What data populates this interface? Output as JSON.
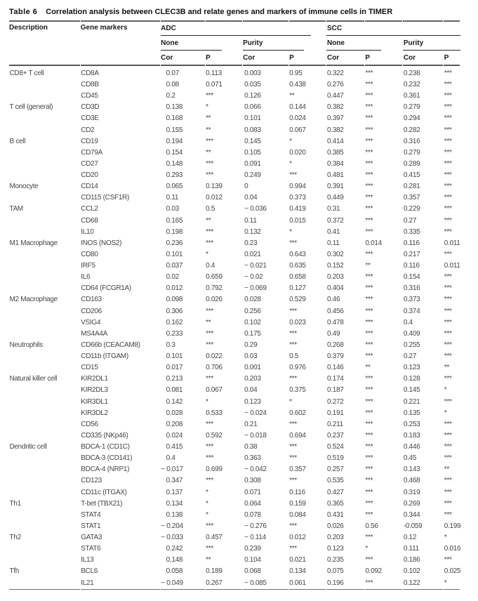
{
  "title": {
    "label": "Table 6",
    "text": "Correlation analysis between CLEC3B and relate genes and markers of immune cells in TIMER"
  },
  "table": {
    "header": {
      "description": "Description",
      "gene_markers": "Gene markers",
      "groups": [
        {
          "label": "ADC",
          "subgroups": [
            {
              "label": "None",
              "columns": [
                "Cor",
                "P"
              ]
            },
            {
              "label": "Purity",
              "columns": [
                "Cor",
                "P"
              ]
            }
          ]
        },
        {
          "label": "SCC",
          "subgroups": [
            {
              "label": "None",
              "columns": [
                "Cor",
                "P"
              ]
            },
            {
              "label": "Purity",
              "columns": [
                "Cor",
                "P"
              ]
            }
          ]
        }
      ]
    },
    "rows": [
      {
        "description": "CD8+ T cell",
        "gene": "CD8A",
        "values": [
          "0.07",
          "0.113",
          "0.003",
          "0.95",
          "0.322",
          "***",
          "0.238",
          "***"
        ]
      },
      {
        "description": "",
        "gene": "CD8B",
        "values": [
          "0.08",
          "0.071",
          "0.035",
          "0.438",
          "0.276",
          "***",
          "0.232",
          "***"
        ]
      },
      {
        "description": "",
        "gene": "CD45",
        "values": [
          "0.2",
          "***",
          "0.126",
          "**",
          "0.447",
          "***",
          "0.361",
          "***"
        ]
      },
      {
        "description": "T cell (general)",
        "gene": "CD3D",
        "values": [
          "0.138",
          "*",
          "0.066",
          "0.144",
          "0.382",
          "***",
          "0.279",
          "***"
        ]
      },
      {
        "description": "",
        "gene": "CD3E",
        "values": [
          "0.168",
          "**",
          "0.101",
          "0.024",
          "0.397",
          "***",
          "0.294",
          "***"
        ]
      },
      {
        "description": "",
        "gene": "CD2",
        "values": [
          "0.155",
          "**",
          "0.083",
          "0.067",
          "0.382",
          "***",
          "0.282",
          "***"
        ]
      },
      {
        "description": "B cell",
        "gene": "CD19",
        "values": [
          "0.194",
          "***",
          "0.145",
          "*",
          "0.414",
          "***",
          "0.316",
          "***"
        ]
      },
      {
        "description": "",
        "gene": "CD79A",
        "values": [
          "0.154",
          "**",
          "0.105",
          "0.020",
          "0.385",
          "***",
          "0.279",
          "***"
        ]
      },
      {
        "description": "",
        "gene": "CD27",
        "values": [
          "0.148",
          "***",
          "0.091",
          "*",
          "0.384",
          "***",
          "0.289",
          "***"
        ]
      },
      {
        "description": "",
        "gene": "CD20",
        "values": [
          "0.293",
          "***",
          "0.249",
          "***",
          "0.481",
          "***",
          "0.415",
          "***"
        ]
      },
      {
        "description": "Monocyte",
        "gene": "CD14",
        "values": [
          "0.065",
          "0.139",
          "0",
          "0.994",
          "0.391",
          "***",
          "0.281",
          "***"
        ]
      },
      {
        "description": "",
        "gene": "CD115 (CSF1R)",
        "values": [
          "0.11",
          "0.012",
          "0.04",
          "0.373",
          "0.449",
          "***",
          "0.357",
          "***"
        ]
      },
      {
        "description": "TAM",
        "gene": "CCL2",
        "values": [
          "0.03",
          "0.5",
          "− 0.036",
          "0.419",
          "0.31",
          "***",
          "0.229",
          "***"
        ]
      },
      {
        "description": "",
        "gene": "CD68",
        "values": [
          "0.165",
          "**",
          "0.11",
          "0.015",
          "0.372",
          "***",
          "0.27",
          "***"
        ]
      },
      {
        "description": "",
        "gene": "IL10",
        "values": [
          "0.198",
          "***",
          "0.132",
          "*",
          "0.41",
          "***",
          "0.335",
          "***"
        ]
      },
      {
        "description": "M1 Macrophage",
        "gene": "INOS (NOS2)",
        "values": [
          "0.236",
          "***",
          "0.23",
          "***",
          "0.11",
          "0.014",
          "0.116",
          "0.011"
        ]
      },
      {
        "description": "",
        "gene": "CD80",
        "values": [
          "0.101",
          "*",
          "0.021",
          "0.643",
          "0.302",
          "***",
          "0.217",
          "***"
        ]
      },
      {
        "description": "",
        "gene": "IRF5",
        "values": [
          "0.037",
          "0.4",
          "− 0.021",
          "0.635",
          "0.152",
          "**",
          "0.116",
          "0.011"
        ]
      },
      {
        "description": "",
        "gene": "IL6",
        "values": [
          "0.02",
          "0.659",
          "− 0.02",
          "0.658",
          "0.203",
          "***",
          "0.154",
          "***"
        ]
      },
      {
        "description": "",
        "gene": "CD64 (FCGR1A)",
        "values": [
          "0.012",
          "0.792",
          "− 0.069",
          "0.127",
          "0.404",
          "***",
          "0.316",
          "***"
        ]
      },
      {
        "description": "M2 Macrophage",
        "gene": "CD163",
        "values": [
          "0.098",
          "0.026",
          "0.028",
          "0.529",
          "0.46",
          "***",
          "0.373",
          "***"
        ]
      },
      {
        "description": "",
        "gene": "CD206",
        "values": [
          "0.306",
          "***",
          "0.256",
          "***",
          "0.456",
          "***",
          "0.374",
          "***"
        ]
      },
      {
        "description": "",
        "gene": "VSIG4",
        "values": [
          "0.162",
          "**",
          "0.102",
          "0.023",
          "0.478",
          "***",
          "0.4",
          "***"
        ]
      },
      {
        "description": "",
        "gene": "MS4A4A",
        "values": [
          "0.233",
          "***",
          "0.175",
          "***",
          "0.49",
          "***",
          "0.409",
          "***"
        ]
      },
      {
        "description": "Neutrophils",
        "gene": "CD66b (CEACAM8)",
        "values": [
          "0.3",
          "***",
          "0.29",
          "***",
          "0.268",
          "***",
          "0.255",
          "***"
        ]
      },
      {
        "description": "",
        "gene": "CD11b (ITGAM)",
        "values": [
          "0.101",
          "0.022",
          "0.03",
          "0.5",
          "0.379",
          "***",
          "0.27",
          "***"
        ]
      },
      {
        "description": "",
        "gene": "CD15",
        "values": [
          "0.017",
          "0.706",
          "0.001",
          "0.976",
          "0.146",
          "**",
          "0.123",
          "**"
        ]
      },
      {
        "description": "Natural killer cell",
        "gene": "KIR2DL1",
        "values": [
          "0.213",
          "***",
          "0.203",
          "***",
          "0.174",
          "***",
          "0.128",
          "***"
        ]
      },
      {
        "description": "",
        "gene": "KIR2DL3",
        "values": [
          "0.081",
          "0.067",
          "0.04",
          "0.375",
          "0.187",
          "***",
          "0.145",
          "*"
        ]
      },
      {
        "description": "",
        "gene": "KIR3DL1",
        "values": [
          "0.142",
          "*",
          "0.123",
          "*",
          "0.272",
          "***",
          "0.221",
          "***"
        ]
      },
      {
        "description": "",
        "gene": "KIR3DL2",
        "values": [
          "0.028",
          "0.533",
          "− 0.024",
          "0.602",
          "0.191",
          "***",
          "0.135",
          "*"
        ]
      },
      {
        "description": "",
        "gene": "CD56",
        "values": [
          "0.208",
          "***",
          "0.21",
          "***",
          "0.211",
          "***",
          "0.253",
          "***"
        ]
      },
      {
        "description": "",
        "gene": "CD335 (NKp46)",
        "values": [
          "0.024",
          "0.592",
          "− 0.018",
          "0.694",
          "0.237",
          "***",
          "0.183",
          "***"
        ]
      },
      {
        "description": "Dendritic cell",
        "gene": "BDCA-1 (CD1C)",
        "values": [
          "0.415",
          "***",
          "0.38",
          "***",
          "0.524",
          "***",
          "0.446",
          "***"
        ]
      },
      {
        "description": "",
        "gene": "BDCA-3 (CD141)",
        "values": [
          "0.4",
          "***",
          "0.363",
          "***",
          "0.519",
          "***",
          "0.45",
          "***"
        ]
      },
      {
        "description": "",
        "gene": "BDCA-4 (NRP1)",
        "values": [
          "− 0.017",
          "0.699",
          "− 0.042",
          "0.357",
          "0.257",
          "***",
          "0.143",
          "**"
        ]
      },
      {
        "description": "",
        "gene": "CD123",
        "values": [
          "0.347",
          "***",
          "0.308",
          "***",
          "0.535",
          "***",
          "0.468",
          "***"
        ]
      },
      {
        "description": "",
        "gene": "CD11c (ITGAX)",
        "values": [
          "0.137",
          "*",
          "0.071",
          "0.116",
          "0.427",
          "***",
          "0.319",
          "***"
        ]
      },
      {
        "description": "Th1",
        "gene": "T-bet (TBX21)",
        "values": [
          "0.134",
          "*",
          "0.064",
          "0.159",
          "0.365",
          "***",
          "0.269",
          "***"
        ]
      },
      {
        "description": "",
        "gene": "STAT4",
        "values": [
          "0.138",
          "*",
          "0.078",
          "0.084",
          "0.431",
          "***",
          "0.344",
          "***"
        ]
      },
      {
        "description": "",
        "gene": "STAT1",
        "values": [
          "− 0.204",
          "***",
          "− 0.276",
          "***",
          "0.026",
          "0.56",
          "-0.059",
          "0.199"
        ]
      },
      {
        "description": "Th2",
        "gene": "GATA3",
        "values": [
          "− 0.033",
          "0.457",
          "− 0.114",
          "0.012",
          "0.203",
          "***",
          "0.12",
          "*"
        ]
      },
      {
        "description": "",
        "gene": "STAT6",
        "values": [
          "0.242",
          "***",
          "0.239",
          "***",
          "0.123",
          "*",
          "0.111",
          "0.016"
        ]
      },
      {
        "description": "",
        "gene": "IL13",
        "values": [
          "0.148",
          "**",
          "0.104",
          "0.021",
          "0.235",
          "***",
          "0.186",
          "***"
        ]
      },
      {
        "description": "Tfh",
        "gene": "BCL6",
        "values": [
          "0.058",
          "0.189",
          "0.068",
          "0.134",
          "0.075",
          "0.092",
          "0.102",
          "0.025"
        ]
      },
      {
        "description": "",
        "gene": "IL21",
        "values": [
          "− 0.049",
          "0.267",
          "− 0.085",
          "0.061",
          "0.196",
          "***",
          "0.122",
          "*"
        ]
      }
    ]
  }
}
